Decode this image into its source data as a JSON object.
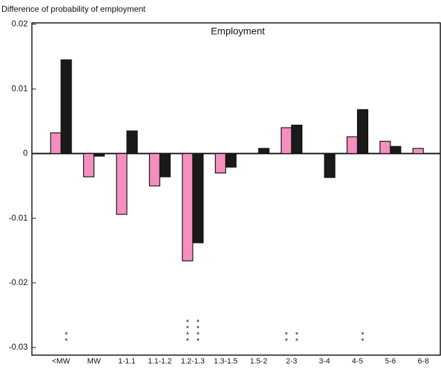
{
  "chart_data": {
    "type": "bar",
    "title": "Employment",
    "y_label": "Difference of probability of employment",
    "categories": [
      "<MW",
      "MW",
      "1-1.1",
      "1.1-1.2",
      "1.2-1.3",
      "1.3-1.5",
      "1.5-2",
      "2-3",
      "3-4",
      "4-5",
      "5-6",
      "6-8"
    ],
    "series": [
      {
        "color": "#f48fc0",
        "values": [
          0.0032,
          -0.0036,
          -0.0094,
          -0.005,
          -0.0166,
          -0.003,
          null,
          0.004,
          null,
          0.0026,
          0.0019,
          0.0008
        ],
        "significance": [
          null,
          null,
          null,
          null,
          "****",
          null,
          null,
          "**",
          null,
          null,
          null,
          null
        ]
      },
      {
        "color": "#1a1a1a",
        "values": [
          0.0145,
          -0.0004,
          0.0035,
          -0.0036,
          -0.0138,
          -0.0021,
          0.0008,
          0.0044,
          -0.0037,
          0.0068,
          0.0011,
          null
        ],
        "significance": [
          "**",
          null,
          null,
          null,
          "****",
          null,
          null,
          "**",
          null,
          "**",
          null,
          null
        ]
      }
    ],
    "ylim": [
      -0.03,
      0.02
    ],
    "yticks": [
      -0.03,
      -0.02,
      -0.01,
      0,
      0.01,
      0.02
    ],
    "grid": false
  }
}
